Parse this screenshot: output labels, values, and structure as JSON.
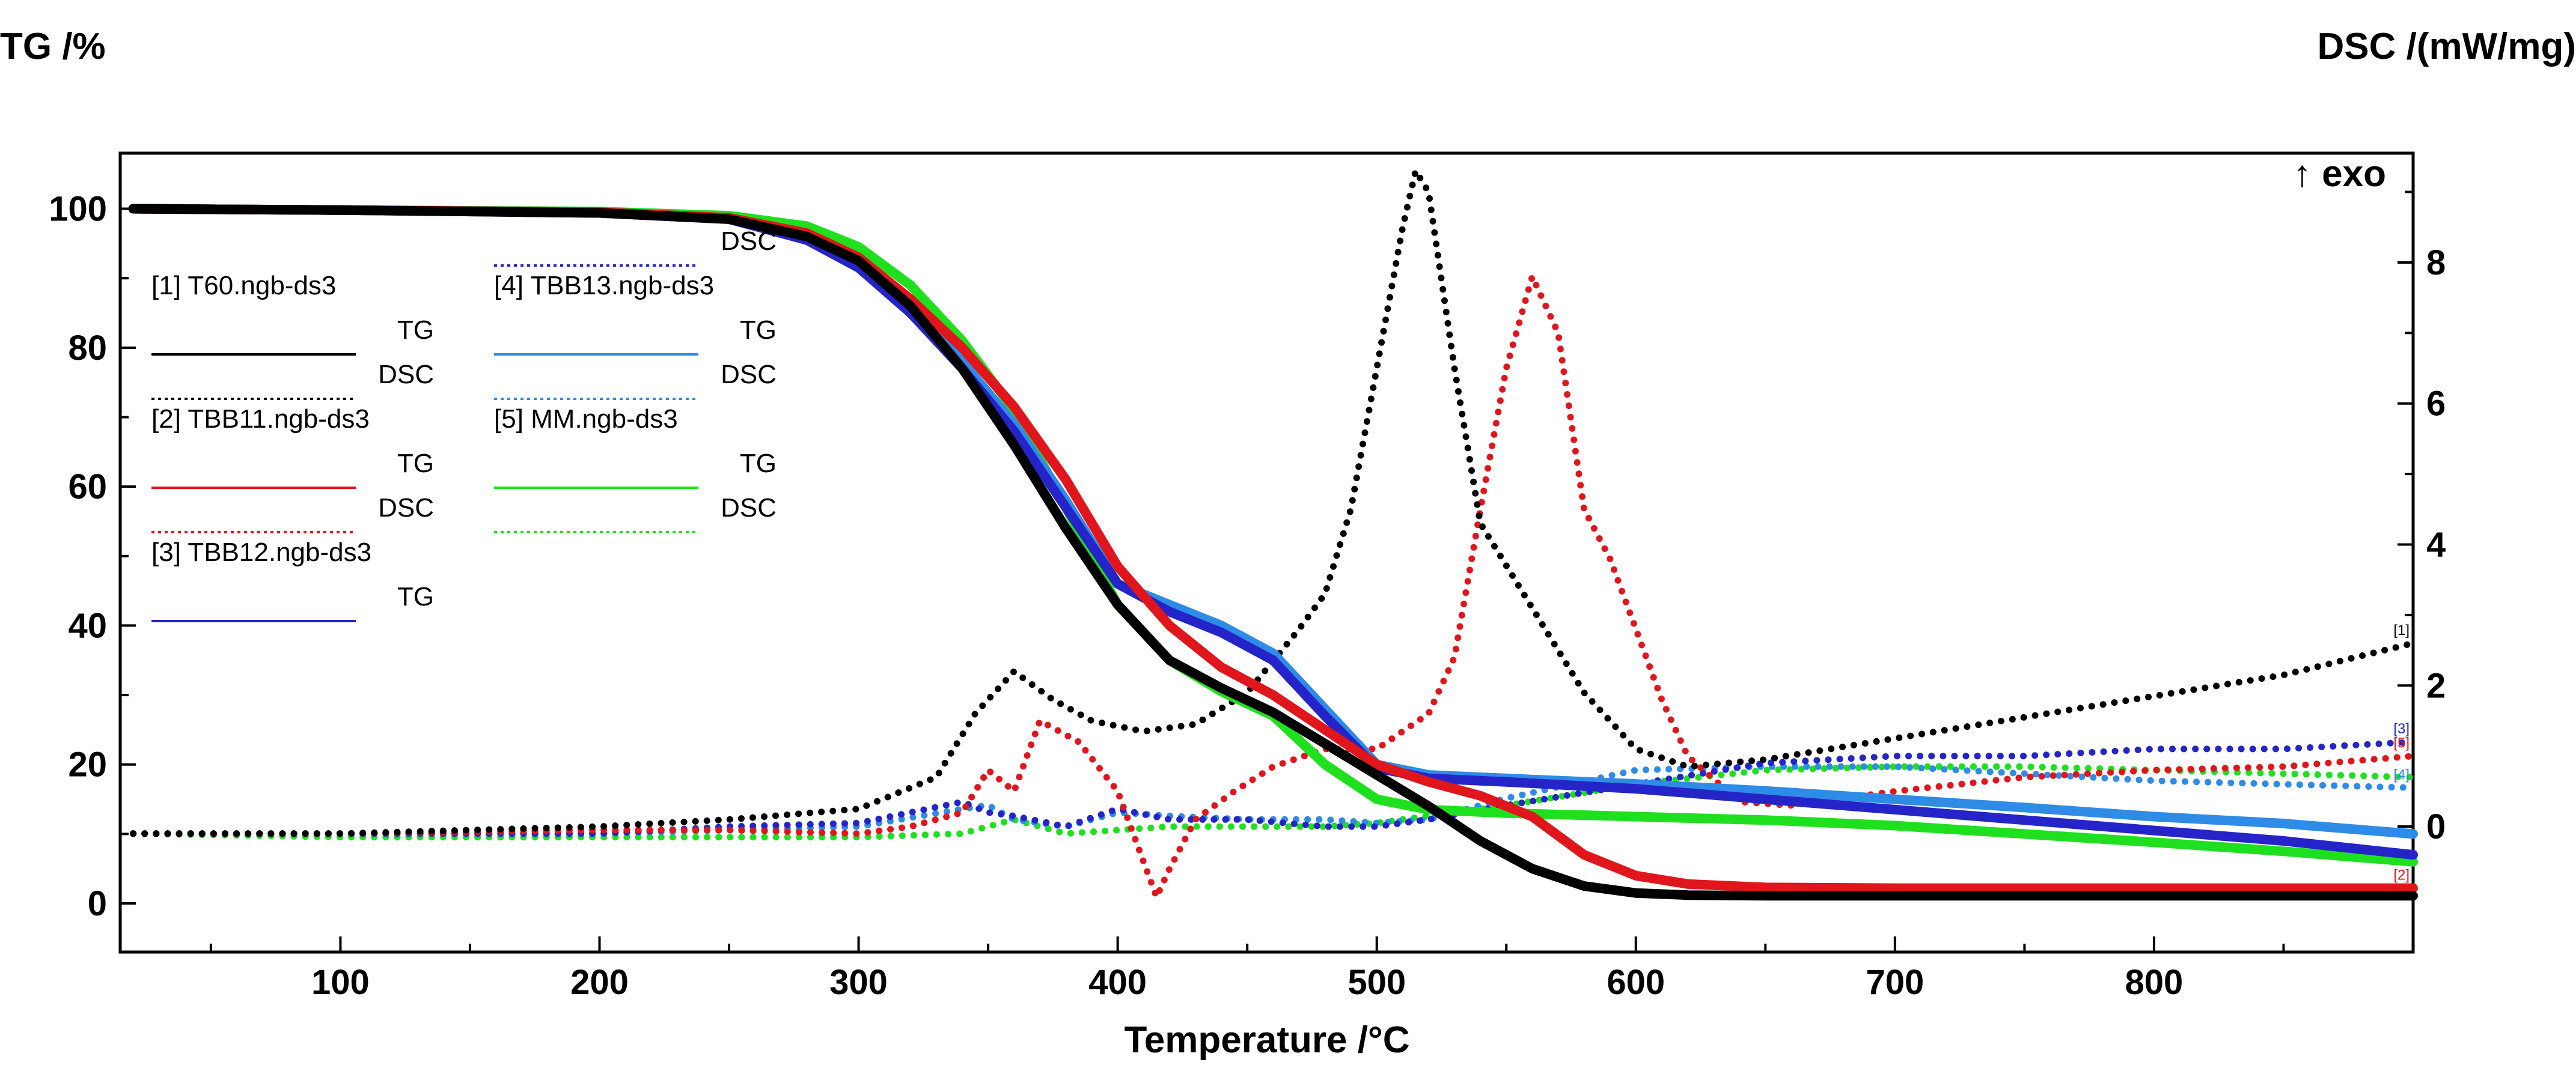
{
  "chart_data": {
    "type": "line",
    "title": "",
    "xlabel": "Temperature /°C",
    "ylabel_left": "TG /%",
    "ylabel_right": "DSC /(mW/mg)",
    "exo_label": "↑ exo",
    "xlim": [
      15,
      900
    ],
    "ylim_left": [
      -7,
      108
    ],
    "ylim_right": [
      -1.78,
      9.55
    ],
    "x_ticks": [
      100,
      200,
      300,
      400,
      500,
      600,
      700,
      800
    ],
    "y_left_ticks": [
      0,
      20,
      40,
      60,
      80,
      100
    ],
    "y_right_ticks": [
      0,
      2,
      4,
      6,
      8
    ],
    "grid": false,
    "legend_position": "upper-left",
    "legend": [
      {
        "title": "[1] T60.ngb-ds3",
        "entries": [
          {
            "label": "TG",
            "series": "tg1"
          },
          {
            "label": "DSC",
            "series": "dsc1"
          }
        ]
      },
      {
        "title": "[2] TBB11.ngb-ds3",
        "entries": [
          {
            "label": "TG",
            "series": "tg2"
          },
          {
            "label": "DSC",
            "series": "dsc2"
          }
        ]
      },
      {
        "title": "[3] TBB12.ngb-ds3",
        "entries": [
          {
            "label": "TG",
            "series": "tg3"
          },
          {
            "label": "DSC",
            "series": "dsc3"
          }
        ]
      },
      {
        "title": "[4] TBB13.ngb-ds3",
        "entries": [
          {
            "label": "TG",
            "series": "tg4"
          },
          {
            "label": "DSC",
            "series": "dsc4"
          }
        ]
      },
      {
        "title": "[5] MM.ngb-ds3",
        "entries": [
          {
            "label": "TG",
            "series": "tg5"
          },
          {
            "label": "DSC",
            "series": "dsc5"
          }
        ]
      }
    ],
    "end_markers": [
      "[1]",
      "[2]",
      "[3]",
      "[4]",
      "[5]"
    ],
    "series": [
      {
        "id": "tg1",
        "name": "[1] T60.ngb-ds3 TG",
        "axis": "left",
        "style": "solid",
        "color": "#000000",
        "x": [
          20,
          100,
          200,
          250,
          280,
          300,
          320,
          340,
          360,
          380,
          400,
          420,
          440,
          460,
          480,
          500,
          520,
          540,
          560,
          580,
          600,
          620,
          650,
          700,
          800,
          900
        ],
        "y": [
          100,
          99.8,
          99.4,
          98.5,
          96,
          92.5,
          86,
          77,
          66,
          54,
          43,
          35,
          31,
          27.5,
          23,
          18.5,
          14,
          9,
          5,
          2.5,
          1.5,
          1.2,
          1.1,
          1.1,
          1.1,
          1.1
        ]
      },
      {
        "id": "tg2",
        "name": "[2] TBB11.ngb-ds3 TG",
        "axis": "left",
        "style": "solid",
        "color": "#e0161c",
        "x": [
          20,
          100,
          200,
          250,
          280,
          300,
          320,
          340,
          360,
          380,
          400,
          420,
          440,
          460,
          480,
          500,
          520,
          540,
          560,
          580,
          600,
          620,
          650,
          700,
          800,
          900
        ],
        "y": [
          100,
          99.8,
          99.5,
          98.7,
          96.5,
          93,
          87,
          80,
          71.5,
          61,
          48.5,
          40,
          34,
          30,
          25,
          20,
          17.5,
          15.5,
          12.5,
          7,
          4,
          2.8,
          2.3,
          2.2,
          2.2,
          2.2
        ]
      },
      {
        "id": "tg3",
        "name": "[3] TBB12.ngb-ds3 TG",
        "axis": "left",
        "style": "solid",
        "color": "#2424c8",
        "x": [
          20,
          100,
          200,
          250,
          280,
          300,
          320,
          340,
          360,
          380,
          400,
          420,
          440,
          460,
          480,
          500,
          520,
          550,
          600,
          650,
          700,
          750,
          800,
          850,
          900
        ],
        "y": [
          100,
          99.8,
          99.4,
          98.5,
          95.5,
          91.5,
          85,
          77,
          68,
          57,
          46,
          42,
          39,
          35,
          27,
          19.5,
          18,
          17.5,
          16.5,
          15,
          13.5,
          12,
          10.5,
          9,
          7
        ]
      },
      {
        "id": "tg4",
        "name": "[4] TBB13.ngb-ds3 TG",
        "axis": "left",
        "style": "solid",
        "color": "#2e8be6",
        "x": [
          20,
          100,
          200,
          250,
          280,
          300,
          320,
          340,
          360,
          380,
          400,
          420,
          440,
          460,
          480,
          500,
          520,
          550,
          600,
          650,
          700,
          750,
          800,
          850,
          900
        ],
        "y": [
          100,
          99.8,
          99.5,
          98.6,
          96,
          92,
          86,
          78,
          69,
          58,
          46,
          43,
          40,
          36,
          28,
          20,
          18.5,
          18,
          17.2,
          16.2,
          15,
          13.8,
          12.5,
          11.5,
          10
        ]
      },
      {
        "id": "tg5",
        "name": "[5] MM.ngb-ds3 TG",
        "axis": "left",
        "style": "solid",
        "color": "#1ee01e",
        "x": [
          20,
          100,
          200,
          250,
          280,
          300,
          320,
          340,
          360,
          380,
          400,
          420,
          440,
          460,
          480,
          500,
          520,
          550,
          600,
          650,
          700,
          750,
          800,
          850,
          900
        ],
        "y": [
          100,
          99.8,
          99.6,
          99,
          97.5,
          94.5,
          89,
          81,
          71,
          57,
          43,
          35,
          30.5,
          27,
          20,
          15,
          13.5,
          13,
          12.5,
          12,
          11.2,
          10,
          8.8,
          7.5,
          6
        ]
      },
      {
        "id": "dsc1",
        "name": "[1] T60.ngb-ds3 DSC",
        "axis": "right",
        "style": "dotted",
        "color": "#000000",
        "x": [
          20,
          100,
          200,
          250,
          300,
          330,
          345,
          360,
          375,
          390,
          410,
          430,
          450,
          470,
          480,
          490,
          500,
          510,
          515,
          520,
          530,
          540,
          560,
          580,
          600,
          620,
          650,
          700,
          750,
          800,
          850,
          900
        ],
        "y": [
          -0.1,
          -0.1,
          0.0,
          0.1,
          0.25,
          0.7,
          1.6,
          2.2,
          1.8,
          1.5,
          1.35,
          1.45,
          1.9,
          2.8,
          3.3,
          4.5,
          6.5,
          8.5,
          9.3,
          9.0,
          6.5,
          4.3,
          3.1,
          1.9,
          1.1,
          0.85,
          0.95,
          1.25,
          1.55,
          1.85,
          2.15,
          2.6
        ]
      },
      {
        "id": "dsc2",
        "name": "[2] TBB11.ngb-ds3 DSC",
        "axis": "right",
        "style": "dotted",
        "color": "#e0161c",
        "x": [
          20,
          100,
          200,
          250,
          300,
          320,
          340,
          350,
          360,
          370,
          385,
          400,
          410,
          415,
          420,
          430,
          445,
          460,
          480,
          500,
          520,
          530,
          540,
          550,
          560,
          570,
          580,
          590,
          600,
          610,
          620,
          640,
          660,
          700,
          750,
          800,
          850,
          900
        ],
        "y": [
          -0.1,
          -0.1,
          -0.05,
          -0.05,
          -0.1,
          0.0,
          0.2,
          0.8,
          0.5,
          1.5,
          1.2,
          0.5,
          -0.5,
          -1.0,
          -0.6,
          0.1,
          0.5,
          0.85,
          1.1,
          1.1,
          1.6,
          2.4,
          4.5,
          6.5,
          7.8,
          7.0,
          4.5,
          3.8,
          2.8,
          1.8,
          1.0,
          0.35,
          0.3,
          0.5,
          0.7,
          0.8,
          0.85,
          1.0
        ]
      },
      {
        "id": "dsc3",
        "name": "[3] TBB12.ngb-ds3 DSC",
        "axis": "right",
        "style": "dotted",
        "color": "#2424c8",
        "x": [
          20,
          100,
          200,
          250,
          300,
          340,
          350,
          360,
          380,
          400,
          420,
          450,
          480,
          500,
          520,
          550,
          600,
          650,
          700,
          750,
          800,
          850,
          900
        ],
        "y": [
          -0.1,
          -0.1,
          -0.1,
          0.0,
          0.05,
          0.35,
          0.2,
          0.15,
          0.0,
          0.25,
          0.1,
          0.1,
          0.0,
          0.0,
          0.1,
          0.3,
          0.6,
          0.9,
          1.0,
          1.0,
          1.1,
          1.1,
          1.2
        ]
      },
      {
        "id": "dsc4",
        "name": "[4] TBB13.ngb-ds3 DSC",
        "axis": "right",
        "style": "dotted",
        "color": "#2e8be6",
        "x": [
          20,
          100,
          200,
          250,
          300,
          340,
          350,
          360,
          380,
          400,
          420,
          450,
          480,
          500,
          520,
          550,
          600,
          650,
          700,
          750,
          800,
          850,
          900
        ],
        "y": [
          -0.1,
          -0.1,
          -0.1,
          -0.05,
          0.0,
          0.25,
          0.3,
          0.1,
          0.0,
          0.2,
          0.15,
          0.1,
          0.1,
          0.05,
          0.1,
          0.4,
          0.8,
          0.85,
          0.85,
          0.75,
          0.65,
          0.6,
          0.55
        ]
      },
      {
        "id": "dsc5",
        "name": "[5] MM.ngb-ds3 DSC",
        "axis": "right",
        "style": "dotted",
        "color": "#1ee01e",
        "x": [
          20,
          100,
          200,
          250,
          300,
          340,
          360,
          380,
          400,
          420,
          450,
          480,
          500,
          520,
          550,
          600,
          650,
          700,
          750,
          800,
          850,
          900
        ],
        "y": [
          -0.1,
          -0.15,
          -0.15,
          -0.15,
          -0.15,
          -0.1,
          0.1,
          -0.1,
          -0.05,
          0.0,
          0.0,
          0.0,
          0.05,
          0.15,
          0.3,
          0.6,
          0.8,
          0.85,
          0.85,
          0.8,
          0.75,
          0.7
        ]
      }
    ]
  }
}
